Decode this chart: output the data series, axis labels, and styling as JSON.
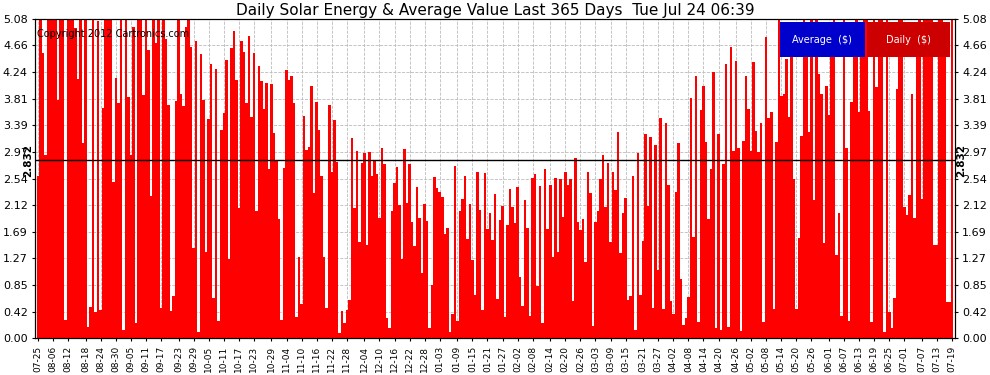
{
  "title": "Daily Solar Energy & Average Value Last 365 Days  Tue Jul 24 06:39",
  "copyright": "Copyright 2012 Cartronics.com",
  "average_value": 2.832,
  "average_label": "2.832",
  "bar_color": "#ff0000",
  "average_line_color": "#000000",
  "background_color": "#ffffff",
  "grid_color": "#bbbbbb",
  "yticks": [
    0.0,
    0.42,
    0.85,
    1.27,
    1.69,
    2.12,
    2.54,
    2.97,
    3.39,
    3.81,
    4.24,
    4.66,
    5.08
  ],
  "ylim": [
    0.0,
    5.08
  ],
  "legend_average_color": "#0000cc",
  "legend_daily_color": "#cc0000",
  "x_date_labels": [
    "07-25",
    "08-06",
    "08-12",
    "08-18",
    "08-24",
    "08-30",
    "09-05",
    "09-11",
    "09-17",
    "09-23",
    "09-29",
    "10-05",
    "10-11",
    "10-17",
    "10-23",
    "10-29",
    "11-04",
    "11-10",
    "11-16",
    "11-22",
    "11-28",
    "12-04",
    "12-10",
    "12-16",
    "12-22",
    "12-28",
    "01-03",
    "01-09",
    "01-15",
    "01-21",
    "01-27",
    "02-02",
    "02-08",
    "02-14",
    "02-20",
    "02-26",
    "03-03",
    "03-09",
    "03-15",
    "03-21",
    "03-27",
    "04-02",
    "04-08",
    "04-14",
    "04-20",
    "04-26",
    "05-02",
    "05-08",
    "05-14",
    "05-20",
    "05-26",
    "06-01",
    "06-07",
    "06-13",
    "06-19",
    "06-25",
    "07-01",
    "07-07",
    "07-13",
    "07-19"
  ],
  "seed": 1234
}
